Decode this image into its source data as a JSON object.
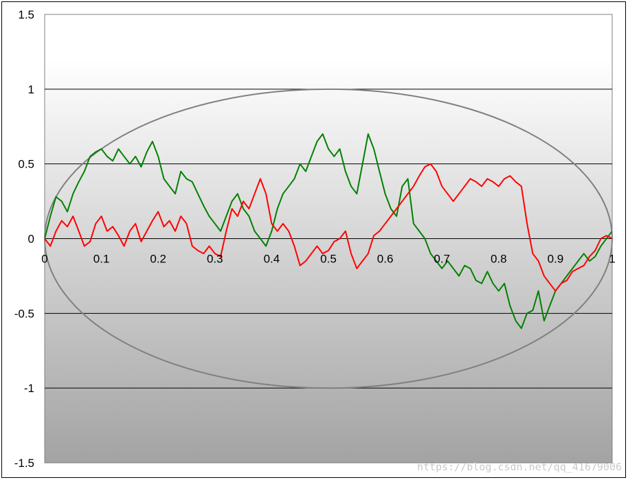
{
  "chart_data": {
    "type": "line",
    "title": "",
    "xlabel": "",
    "ylabel": "",
    "xlim": [
      0,
      1
    ],
    "ylim": [
      -1.5,
      1.5
    ],
    "x_ticks": [
      0,
      0.1,
      0.2,
      0.3,
      0.4,
      0.5,
      0.6,
      0.7,
      0.8,
      0.9,
      1
    ],
    "x_tick_labels": [
      "0",
      "0.1",
      "0.2",
      "0.3",
      "0.4",
      "0.5",
      "0.6",
      "0.7",
      "0.8",
      "0.9",
      "1"
    ],
    "y_ticks": [
      -1.5,
      -1,
      -0.5,
      0,
      0.5,
      1,
      1.5
    ],
    "y_tick_labels": [
      "-1.5",
      "-1",
      "-0.5",
      "0",
      "0.5",
      "1",
      "1.5"
    ],
    "grid": "horizontal",
    "legend": "none",
    "background": "vertical gradient, white at top to grey at bottom",
    "ellipse": {
      "center": [
        0.5,
        0
      ],
      "x_radius": 0.5,
      "y_radius": 1,
      "color": "#808080"
    },
    "series": [
      {
        "color": "#008000",
        "x": [
          0,
          0.01,
          0.02,
          0.03,
          0.04,
          0.05,
          0.06,
          0.07,
          0.08,
          0.09,
          0.1,
          0.11,
          0.12,
          0.13,
          0.14,
          0.15,
          0.16,
          0.17,
          0.18,
          0.19,
          0.2,
          0.21,
          0.22,
          0.23,
          0.24,
          0.25,
          0.26,
          0.27,
          0.28,
          0.29,
          0.3,
          0.31,
          0.32,
          0.33,
          0.34,
          0.35,
          0.36,
          0.37,
          0.38,
          0.39,
          0.4,
          0.41,
          0.42,
          0.43,
          0.44,
          0.45,
          0.46,
          0.47,
          0.48,
          0.49,
          0.5,
          0.51,
          0.52,
          0.53,
          0.54,
          0.55,
          0.56,
          0.57,
          0.58,
          0.59,
          0.6,
          0.61,
          0.62,
          0.63,
          0.64,
          0.65,
          0.66,
          0.67,
          0.68,
          0.69,
          0.7,
          0.71,
          0.72,
          0.73,
          0.74,
          0.75,
          0.76,
          0.77,
          0.78,
          0.79,
          0.8,
          0.81,
          0.82,
          0.83,
          0.84,
          0.85,
          0.86,
          0.87,
          0.88,
          0.89,
          0.9,
          0.91,
          0.92,
          0.93,
          0.94,
          0.95,
          0.96,
          0.97,
          0.98,
          0.99,
          1
        ],
        "y": [
          0,
          0.15,
          0.28,
          0.25,
          0.18,
          0.3,
          0.38,
          0.45,
          0.55,
          0.58,
          0.6,
          0.55,
          0.52,
          0.6,
          0.55,
          0.5,
          0.55,
          0.48,
          0.58,
          0.65,
          0.55,
          0.4,
          0.35,
          0.3,
          0.45,
          0.4,
          0.38,
          0.3,
          0.22,
          0.15,
          0.1,
          0.05,
          0.15,
          0.25,
          0.3,
          0.2,
          0.15,
          0.05,
          0,
          -0.05,
          0.05,
          0.2,
          0.3,
          0.35,
          0.4,
          0.5,
          0.45,
          0.55,
          0.65,
          0.7,
          0.6,
          0.55,
          0.6,
          0.45,
          0.35,
          0.3,
          0.5,
          0.7,
          0.6,
          0.45,
          0.3,
          0.2,
          0.15,
          0.35,
          0.4,
          0.1,
          0.05,
          0,
          -0.1,
          -0.15,
          -0.2,
          -0.15,
          -0.2,
          -0.25,
          -0.18,
          -0.2,
          -0.28,
          -0.3,
          -0.22,
          -0.3,
          -0.35,
          -0.3,
          -0.45,
          -0.55,
          -0.6,
          -0.5,
          -0.48,
          -0.35,
          -0.55,
          -0.45,
          -0.35,
          -0.3,
          -0.25,
          -0.2,
          -0.15,
          -0.1,
          -0.15,
          -0.12,
          -0.05,
          0,
          0.05
        ]
      },
      {
        "color": "#ff0000",
        "x": [
          0,
          0.01,
          0.02,
          0.03,
          0.04,
          0.05,
          0.06,
          0.07,
          0.08,
          0.09,
          0.1,
          0.11,
          0.12,
          0.13,
          0.14,
          0.15,
          0.16,
          0.17,
          0.18,
          0.19,
          0.2,
          0.21,
          0.22,
          0.23,
          0.24,
          0.25,
          0.26,
          0.27,
          0.28,
          0.29,
          0.3,
          0.31,
          0.32,
          0.33,
          0.34,
          0.35,
          0.36,
          0.37,
          0.38,
          0.39,
          0.4,
          0.41,
          0.42,
          0.43,
          0.44,
          0.45,
          0.46,
          0.47,
          0.48,
          0.49,
          0.5,
          0.51,
          0.52,
          0.53,
          0.54,
          0.55,
          0.56,
          0.57,
          0.58,
          0.59,
          0.6,
          0.61,
          0.62,
          0.63,
          0.64,
          0.65,
          0.66,
          0.67,
          0.68,
          0.69,
          0.7,
          0.71,
          0.72,
          0.73,
          0.74,
          0.75,
          0.76,
          0.77,
          0.78,
          0.79,
          0.8,
          0.81,
          0.82,
          0.83,
          0.84,
          0.85,
          0.86,
          0.87,
          0.88,
          0.89,
          0.9,
          0.91,
          0.92,
          0.93,
          0.94,
          0.95,
          0.96,
          0.97,
          0.98,
          0.99,
          1
        ],
        "y": [
          0,
          -0.05,
          0.05,
          0.12,
          0.08,
          0.15,
          0.05,
          -0.05,
          -0.02,
          0.1,
          0.15,
          0.05,
          0.08,
          0.02,
          -0.05,
          0.05,
          0.1,
          -0.02,
          0.05,
          0.12,
          0.18,
          0.08,
          0.12,
          0.05,
          0.15,
          0.1,
          -0.05,
          -0.08,
          -0.1,
          -0.05,
          -0.1,
          -0.12,
          0.05,
          0.2,
          0.15,
          0.25,
          0.2,
          0.3,
          0.4,
          0.3,
          0.1,
          0.05,
          0.1,
          0.05,
          -0.05,
          -0.18,
          -0.15,
          -0.1,
          -0.05,
          -0.1,
          -0.08,
          -0.02,
          0,
          0.05,
          -0.1,
          -0.2,
          -0.15,
          -0.1,
          0.02,
          0.05,
          0.1,
          0.15,
          0.2,
          0.25,
          0.3,
          0.35,
          0.42,
          0.48,
          0.5,
          0.45,
          0.35,
          0.3,
          0.25,
          0.3,
          0.35,
          0.4,
          0.38,
          0.35,
          0.4,
          0.38,
          0.35,
          0.4,
          0.42,
          0.38,
          0.35,
          0.1,
          -0.1,
          -0.15,
          -0.25,
          -0.3,
          -0.35,
          -0.3,
          -0.28,
          -0.22,
          -0.2,
          -0.18,
          -0.12,
          -0.08,
          0,
          0.02,
          0
        ]
      }
    ]
  },
  "watermark": "https://blog.csdn.net/qq_41679006"
}
